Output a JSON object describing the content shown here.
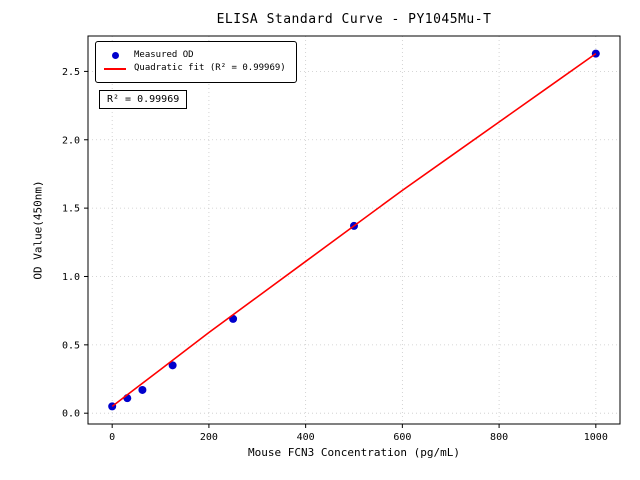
{
  "figure": {
    "title": "ELISA Standard Curve - PY1045Mu-T",
    "xlabel": "Mouse FCN3 Concentration (pg/mL)",
    "ylabel": "OD Value(450nm)",
    "annotation": "R² = 0.99969",
    "legend": {
      "measured": "Measured OD",
      "fit": "Quadratic fit (R² = 0.99969)"
    }
  },
  "chart_data": {
    "type": "scatter",
    "title": "ELISA Standard Curve - PY1045Mu-T",
    "xlabel": "Mouse FCN3 Concentration (pg/mL)",
    "ylabel": "OD Value(450nm)",
    "r_squared": 0.99969,
    "grid": true,
    "legend_position": "upper left",
    "xlim": [
      -50,
      1050
    ],
    "ylim": [
      -0.079,
      2.759
    ],
    "x_ticks": {
      "values": [
        0,
        200,
        400,
        600,
        800,
        1000
      ],
      "labels": [
        "0",
        "200",
        "400",
        "600",
        "800",
        "1000"
      ]
    },
    "y_ticks": {
      "values": [
        0.0,
        0.5,
        1.0,
        1.5,
        2.0,
        2.5
      ],
      "labels": [
        "0.0",
        "0.5",
        "1.0",
        "1.5",
        "2.0",
        "2.5"
      ]
    },
    "series": [
      {
        "name": "Measured OD",
        "kind": "scatter",
        "color": "#0000cd",
        "x": [
          0,
          31.25,
          62.5,
          125,
          250,
          500,
          1000
        ],
        "y": [
          0.05,
          0.11,
          0.17,
          0.35,
          0.69,
          1.37,
          2.63
        ]
      },
      {
        "name": "Quadratic fit (R² = 0.99969)",
        "kind": "line",
        "color": "#ff0000",
        "x": [
          0,
          100,
          200,
          300,
          400,
          500,
          600,
          700,
          800,
          900,
          1000
        ],
        "y": [
          0.05,
          0.32,
          0.59,
          0.85,
          1.11,
          1.37,
          1.63,
          1.88,
          2.13,
          2.38,
          2.63
        ]
      }
    ],
    "colors": {
      "scatter": "#0000cd",
      "fit_line": "#ff0000",
      "grid": "#c9c9c9",
      "axis": "#000000",
      "background": "#ffffff"
    }
  }
}
